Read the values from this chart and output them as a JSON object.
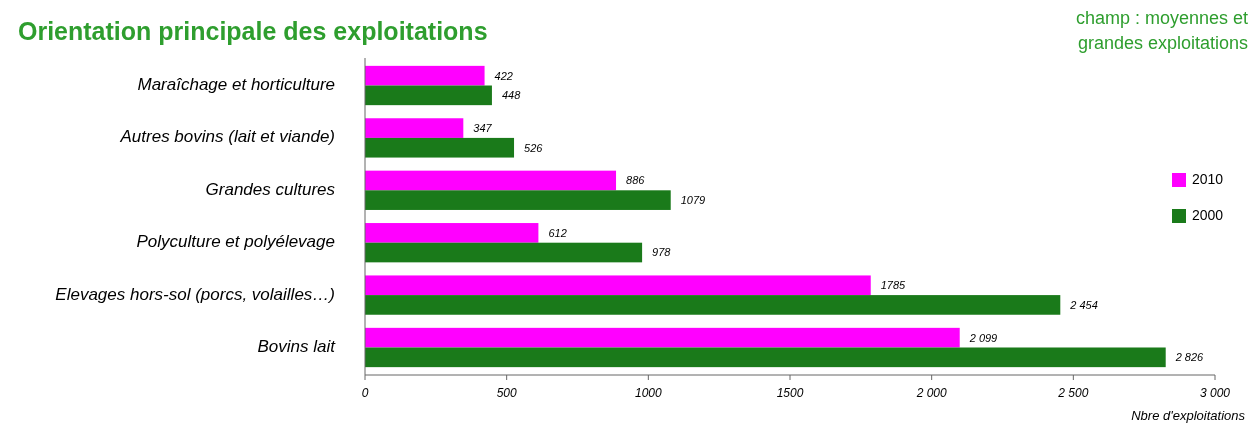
{
  "chart_data": {
    "type": "bar",
    "orientation": "horizontal",
    "title": "Orientation principale des exploitations",
    "annotations": [
      "champ : moyennes et grandes exploitations"
    ],
    "xlabel": "Nbre d'exploitations",
    "categories": [
      "Maraîchage et horticulture",
      "Autres bovins (lait et viande)",
      "Grandes cultures",
      "Polyculture et polyélevage",
      "Elevages hors-sol (porcs, volailles…)",
      "Bovins lait"
    ],
    "series": [
      {
        "name": "2010",
        "color": "#ff00ff",
        "values": [
          422,
          347,
          886,
          612,
          1785,
          2099
        ],
        "value_labels": [
          "422",
          "347",
          "886",
          "612",
          "1785",
          "2 099"
        ]
      },
      {
        "name": "2000",
        "color": "#1a7a1a",
        "values": [
          448,
          526,
          1079,
          978,
          2454,
          2826
        ],
        "value_labels": [
          "448",
          "526",
          "1079",
          "978",
          "2 454",
          "2 826"
        ]
      }
    ],
    "xlim": [
      0,
      3000
    ],
    "xticks": [
      0,
      500,
      1000,
      1500,
      {
        "value": 2000,
        "label": "2 000"
      },
      {
        "value": 2500,
        "label": "2 500"
      },
      {
        "value": 3000,
        "label": "3 000"
      }
    ],
    "legend": "right",
    "grid": false
  }
}
